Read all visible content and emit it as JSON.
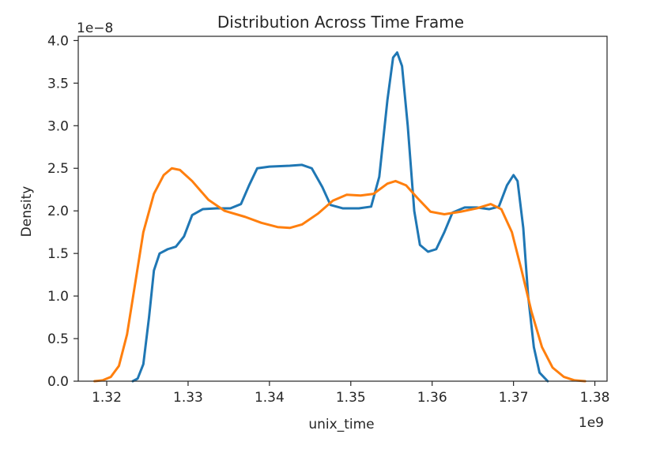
{
  "chart_data": {
    "type": "line",
    "title": "Distribution Across Time Frame",
    "xlabel": "unix_time",
    "ylabel": "Density",
    "x_offset_label": "1e9",
    "y_offset_label": "1e−8",
    "xlim": [
      1.3165,
      1.3815
    ],
    "ylim": [
      0.0,
      4.05
    ],
    "xticks": [
      1.32,
      1.33,
      1.34,
      1.35,
      1.36,
      1.37,
      1.38
    ],
    "xtick_labels": [
      "1.32",
      "1.33",
      "1.34",
      "1.35",
      "1.36",
      "1.37",
      "1.38"
    ],
    "yticks": [
      0.0,
      0.5,
      1.0,
      1.5,
      2.0,
      2.5,
      3.0,
      3.5,
      4.0
    ],
    "ytick_labels": [
      "0.0",
      "0.5",
      "1.0",
      "1.5",
      "2.0",
      "2.5",
      "3.0",
      "3.5",
      "4.0"
    ],
    "grid": false,
    "legend": "none",
    "series": [
      {
        "color": "#1f77b4",
        "points": [
          [
            1.3232,
            0.0
          ],
          [
            1.3238,
            0.03
          ],
          [
            1.3245,
            0.2
          ],
          [
            1.3252,
            0.75
          ],
          [
            1.3258,
            1.3
          ],
          [
            1.3265,
            1.5
          ],
          [
            1.3275,
            1.55
          ],
          [
            1.3285,
            1.58
          ],
          [
            1.3295,
            1.7
          ],
          [
            1.3305,
            1.95
          ],
          [
            1.3318,
            2.02
          ],
          [
            1.3335,
            2.03
          ],
          [
            1.3352,
            2.03
          ],
          [
            1.3365,
            2.08
          ],
          [
            1.3375,
            2.3
          ],
          [
            1.3385,
            2.5
          ],
          [
            1.34,
            2.52
          ],
          [
            1.3425,
            2.53
          ],
          [
            1.344,
            2.54
          ],
          [
            1.3452,
            2.5
          ],
          [
            1.3465,
            2.28
          ],
          [
            1.3475,
            2.07
          ],
          [
            1.349,
            2.03
          ],
          [
            1.351,
            2.03
          ],
          [
            1.3525,
            2.05
          ],
          [
            1.3535,
            2.4
          ],
          [
            1.3545,
            3.3
          ],
          [
            1.3552,
            3.8
          ],
          [
            1.3557,
            3.86
          ],
          [
            1.3563,
            3.7
          ],
          [
            1.357,
            3.0
          ],
          [
            1.3578,
            2.0
          ],
          [
            1.3585,
            1.6
          ],
          [
            1.3595,
            1.52
          ],
          [
            1.3605,
            1.55
          ],
          [
            1.3615,
            1.75
          ],
          [
            1.3625,
            1.98
          ],
          [
            1.364,
            2.04
          ],
          [
            1.3655,
            2.04
          ],
          [
            1.367,
            2.02
          ],
          [
            1.3682,
            2.05
          ],
          [
            1.3692,
            2.3
          ],
          [
            1.37,
            2.42
          ],
          [
            1.3705,
            2.35
          ],
          [
            1.3712,
            1.8
          ],
          [
            1.3718,
            1.0
          ],
          [
            1.3725,
            0.4
          ],
          [
            1.3732,
            0.1
          ],
          [
            1.3742,
            0.0
          ]
        ]
      },
      {
        "color": "#ff7f0e",
        "points": [
          [
            1.3185,
            0.0
          ],
          [
            1.3195,
            0.01
          ],
          [
            1.3205,
            0.05
          ],
          [
            1.3215,
            0.18
          ],
          [
            1.3225,
            0.55
          ],
          [
            1.3235,
            1.15
          ],
          [
            1.3245,
            1.75
          ],
          [
            1.3258,
            2.2
          ],
          [
            1.327,
            2.42
          ],
          [
            1.328,
            2.5
          ],
          [
            1.329,
            2.48
          ],
          [
            1.3305,
            2.35
          ],
          [
            1.3325,
            2.13
          ],
          [
            1.3345,
            2.0
          ],
          [
            1.337,
            1.93
          ],
          [
            1.339,
            1.86
          ],
          [
            1.341,
            1.81
          ],
          [
            1.3425,
            1.8
          ],
          [
            1.344,
            1.84
          ],
          [
            1.346,
            1.97
          ],
          [
            1.3478,
            2.12
          ],
          [
            1.3495,
            2.19
          ],
          [
            1.3512,
            2.18
          ],
          [
            1.3528,
            2.2
          ],
          [
            1.3545,
            2.32
          ],
          [
            1.3555,
            2.35
          ],
          [
            1.3568,
            2.3
          ],
          [
            1.3582,
            2.15
          ],
          [
            1.3598,
            1.99
          ],
          [
            1.3615,
            1.96
          ],
          [
            1.3635,
            1.99
          ],
          [
            1.3655,
            2.03
          ],
          [
            1.3672,
            2.08
          ],
          [
            1.3685,
            2.02
          ],
          [
            1.3698,
            1.75
          ],
          [
            1.371,
            1.3
          ],
          [
            1.3722,
            0.82
          ],
          [
            1.3735,
            0.4
          ],
          [
            1.3748,
            0.16
          ],
          [
            1.3762,
            0.05
          ],
          [
            1.3775,
            0.01
          ],
          [
            1.3788,
            0.0
          ]
        ]
      }
    ]
  }
}
